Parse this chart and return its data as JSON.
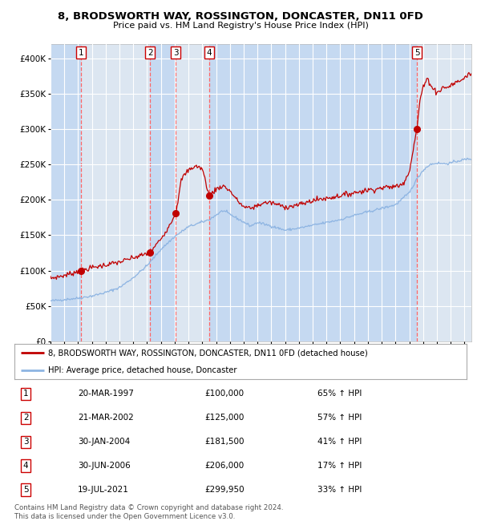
{
  "title": "8, BRODSWORTH WAY, ROSSINGTON, DONCASTER, DN11 0FD",
  "subtitle": "Price paid vs. HM Land Registry's House Price Index (HPI)",
  "transactions": [
    {
      "num": 1,
      "date": "20-MAR-1997",
      "price": 100000,
      "year": 1997.21,
      "pct": "65% ↑ HPI"
    },
    {
      "num": 2,
      "date": "21-MAR-2002",
      "price": 125000,
      "year": 2002.21,
      "pct": "57% ↑ HPI"
    },
    {
      "num": 3,
      "date": "30-JAN-2004",
      "price": 181500,
      "year": 2004.08,
      "pct": "41% ↑ HPI"
    },
    {
      "num": 4,
      "date": "30-JUN-2006",
      "price": 206000,
      "year": 2006.5,
      "pct": "17% ↑ HPI"
    },
    {
      "num": 5,
      "date": "19-JUL-2021",
      "price": 299950,
      "year": 2021.55,
      "pct": "33% ↑ HPI"
    }
  ],
  "legend_line1": "8, BRODSWORTH WAY, ROSSINGTON, DONCASTER, DN11 0FD (detached house)",
  "legend_line2": "HPI: Average price, detached house, Doncaster",
  "footer": "Contains HM Land Registry data © Crown copyright and database right 2024.\nThis data is licensed under the Open Government Licence v3.0.",
  "bg_color": "#dce6f1",
  "red_line_color": "#c00000",
  "blue_line_color": "#8db4e2",
  "dashed_color": "#ff6666",
  "span_color_dark": "#c5d9f1",
  "span_color_light": "#dce6f1",
  "ylim": [
    0,
    420000
  ],
  "xlim_start": 1995.0,
  "xlim_end": 2025.5
}
